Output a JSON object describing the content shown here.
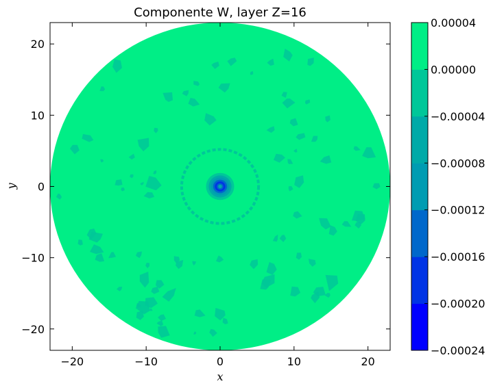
{
  "chart_data": {
    "type": "heatmap",
    "subtype": "filled-contour",
    "title": "Componente W, layer Z=16",
    "xlabel": "x",
    "ylabel": "y",
    "xlim": [
      -23,
      23
    ],
    "ylim": [
      -23,
      23
    ],
    "xticks": [
      -20,
      -10,
      0,
      10,
      20
    ],
    "xtick_labels": [
      "−20",
      "−10",
      "0",
      "10",
      "20"
    ],
    "yticks": [
      -20,
      -10,
      0,
      10,
      20
    ],
    "ytick_labels": [
      "−20",
      "−10",
      "0",
      "10",
      "20"
    ],
    "domain_radius": 23,
    "grid": false,
    "colorbar": {
      "levels": [
        -0.00024,
        -0.0002,
        -0.00016,
        -0.00012,
        -8e-05,
        -4e-05,
        0.0,
        4e-05
      ],
      "tick_labels": [
        "−0.00024",
        "−0.00020",
        "−0.00016",
        "−0.00012",
        "−0.00008",
        "−0.00004",
        "0.00000",
        "0.00004"
      ],
      "colors": [
        "#0000ff",
        "#0034e5",
        "#0068cb",
        "#009cb2",
        "#00aaa8",
        "#00c799",
        "#00ee86"
      ]
    },
    "features": {
      "background_value_band": [
        0.0,
        4e-05
      ],
      "center_minimum": {
        "x": 0,
        "y": 0,
        "value": -0.00024
      },
      "inner_ring_radius": 5.2,
      "inner_ring_band": [
        -4e-05,
        0.0
      ]
    }
  }
}
